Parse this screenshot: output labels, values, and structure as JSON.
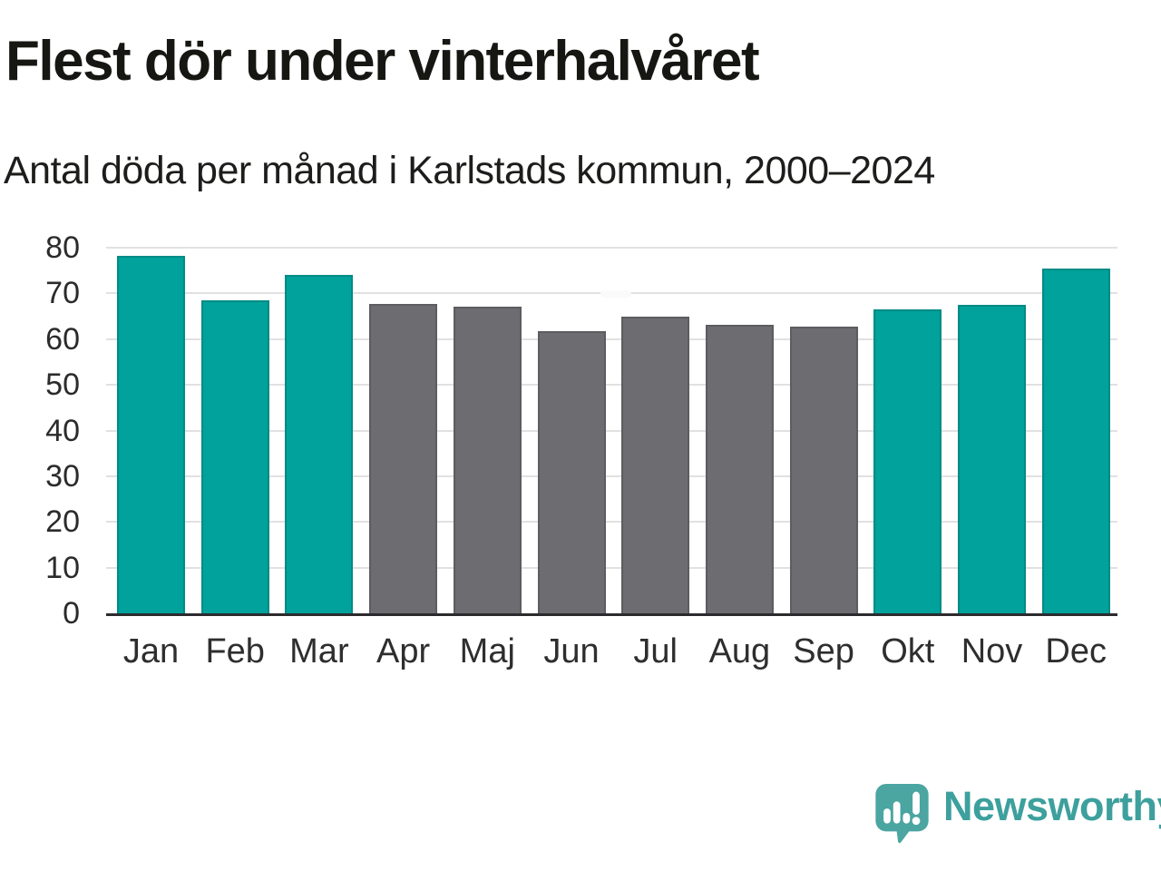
{
  "header": {
    "title": "Flest dör under vinterhalvåret",
    "subtitle": "Antal döda per månad i Karlstads kommun, 2000–2024"
  },
  "chart_data": {
    "type": "bar",
    "title": "Flest dör under vinterhalvåret",
    "subtitle": "Antal döda per månad i Karlstads kommun, 2000–2024",
    "categories": [
      "Jan",
      "Feb",
      "Mar",
      "Apr",
      "Maj",
      "Jun",
      "Jul",
      "Aug",
      "Sep",
      "Okt",
      "Nov",
      "Dec"
    ],
    "values": [
      78.2,
      68.5,
      74.1,
      67.6,
      67.1,
      61.7,
      65.0,
      63.1,
      62.7,
      66.6,
      67.4,
      75.4
    ],
    "groups": [
      "winter",
      "winter",
      "winter",
      "summer",
      "summer",
      "summer",
      "summer",
      "summer",
      "summer",
      "winter",
      "winter",
      "winter"
    ],
    "palette": {
      "winter": "#00a29b",
      "summer": "#6c6c71"
    },
    "xlabel": "",
    "ylabel": "",
    "ylim": [
      0,
      80
    ],
    "yticks": [
      0,
      10,
      20,
      30,
      40,
      50,
      60,
      70,
      80
    ],
    "grid": true,
    "legend": null
  },
  "footer": {
    "brand": "Newsworthy",
    "logo_icon": "newsworthy-bar-chart-bubble-icon",
    "brand_color": "#3da09d",
    "logo_color": "#4ba5a1"
  }
}
